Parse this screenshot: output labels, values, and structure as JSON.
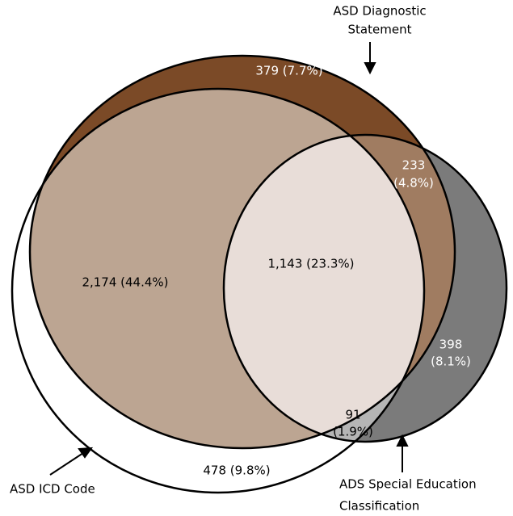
{
  "sets": [
    {
      "label_lines": [
        "ASD ICD Code"
      ]
    },
    {
      "label_lines": [
        "ASD Diagnostic",
        "Statement"
      ]
    },
    {
      "label_lines": [
        "ADS Special Education",
        "Classification"
      ]
    }
  ],
  "regions": [
    {
      "lines": [
        "2,174 (44.4%)"
      ]
    },
    {
      "lines": [
        "379 (7.7%)"
      ]
    },
    {
      "lines": [
        "233",
        "(4.8%)"
      ]
    },
    {
      "lines": [
        "1,143 (23.3%)"
      ]
    },
    {
      "lines": [
        "398",
        "(8.1%)"
      ]
    },
    {
      "lines": [
        "91",
        "(1.9%)"
      ]
    },
    {
      "lines": [
        "478 (9.8%)"
      ]
    }
  ]
}
